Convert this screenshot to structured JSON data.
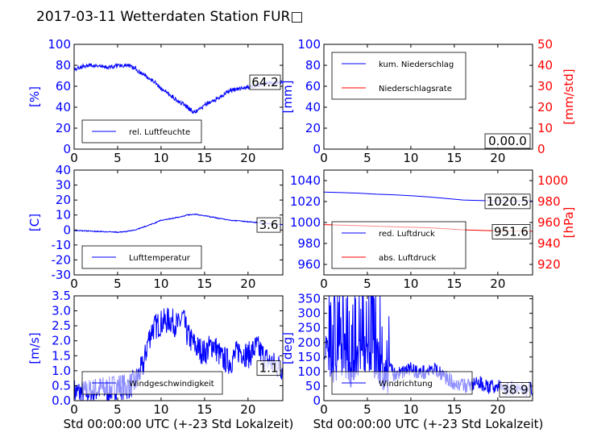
{
  "title": "2017-03-11 Wetterdaten Station FUR□",
  "xlabel": "Std 00:00:00 UTC (+-23 Std Lokalzeit)",
  "colors": {
    "primary": "#0000ff",
    "secondary": "#ff0000",
    "axis": "#000000"
  },
  "chart_data": [
    {
      "id": "humidity",
      "type": "line",
      "ylabel": "[%]",
      "ylim": [
        0,
        100
      ],
      "yticks": [
        0,
        20,
        40,
        60,
        80,
        100
      ],
      "xlim": [
        0,
        24
      ],
      "xticks": [
        0,
        5,
        10,
        15,
        20
      ],
      "show_xlabel": false,
      "legend_placement": "lower-left",
      "series": [
        {
          "name": "rel. Luftfeuchte",
          "color": "#0000ff",
          "noise": 2,
          "x": [
            0,
            1,
            2,
            3,
            4,
            5,
            6,
            7,
            8,
            9,
            10,
            11,
            12,
            13,
            13.8,
            14.5,
            15,
            16,
            17,
            18,
            19,
            20,
            21,
            22,
            23,
            24
          ],
          "y": [
            76,
            79,
            80,
            79,
            78,
            80,
            80,
            77,
            71,
            66,
            58,
            52,
            46,
            40,
            35,
            38,
            42,
            46,
            51,
            56,
            58,
            59,
            61,
            63,
            63,
            64
          ]
        }
      ],
      "annotation": {
        "text": "64.2",
        "value": 64.2
      }
    },
    {
      "id": "precip",
      "type": "line",
      "ylabel": "[mm]",
      "ylim": [
        0,
        100
      ],
      "yticks": [
        0,
        20,
        40,
        60,
        80,
        100
      ],
      "ylabel2": "[mm/std]",
      "ylim2": [
        0,
        50
      ],
      "yticks2": [
        0,
        10,
        20,
        30,
        40,
        50
      ],
      "xlim": [
        0,
        24
      ],
      "xticks": [
        0,
        5,
        10,
        15,
        20
      ],
      "show_xlabel": false,
      "legend_placement": "upper-left",
      "series": [
        {
          "name": "kum. Niederschlag",
          "color": "#0000ff",
          "axis": "left",
          "x": [
            0,
            24
          ],
          "y": [
            0,
            0
          ]
        },
        {
          "name": "Niederschlagsrate",
          "color": "#ff0000",
          "axis": "right",
          "x": [
            0,
            24
          ],
          "y": [
            0,
            0
          ]
        }
      ],
      "annotation": {
        "text": "0.00.0",
        "value": 0
      }
    },
    {
      "id": "temperature",
      "type": "line",
      "ylabel": "[C]",
      "ylim": [
        -30,
        40
      ],
      "yticks": [
        -30,
        -20,
        -10,
        0,
        10,
        20,
        30,
        40
      ],
      "xlim": [
        0,
        24
      ],
      "xticks": [
        0,
        5,
        10,
        15,
        20
      ],
      "show_xlabel": false,
      "legend_placement": "lower-left",
      "series": [
        {
          "name": "Lufttemperatur",
          "color": "#0000ff",
          "noise": 0.3,
          "x": [
            0,
            1,
            2,
            3,
            4,
            5,
            6,
            7,
            8,
            9,
            10,
            11,
            12,
            13,
            14,
            15,
            16,
            17,
            18,
            19,
            20,
            21,
            22,
            23,
            24
          ],
          "y": [
            -0.5,
            -0.5,
            -0.8,
            -1,
            -1.2,
            -1.5,
            -1,
            0,
            2,
            4,
            6.5,
            7.5,
            8.5,
            10,
            10.5,
            9.5,
            8.5,
            7.5,
            6.5,
            6,
            5.5,
            5,
            4.5,
            4,
            3.6
          ]
        }
      ],
      "annotation": {
        "text": "3.6",
        "value": 3.6
      }
    },
    {
      "id": "pressure",
      "type": "line",
      "ylim": [
        950,
        1050
      ],
      "yticks": [
        960,
        980,
        1000,
        1020,
        1040
      ],
      "ylabel2": "[hPa]",
      "ylim2": [
        910,
        1010
      ],
      "yticks2": [
        920,
        940,
        960,
        980,
        1000
      ],
      "xlim": [
        0,
        24
      ],
      "xticks": [
        0,
        5,
        10,
        15,
        20
      ],
      "show_xlabel": false,
      "legend_placement": "lower-left",
      "series": [
        {
          "name": "red. Luftdruck",
          "color": "#0000ff",
          "axis": "left",
          "x": [
            0,
            2,
            4,
            6,
            8,
            10,
            12,
            14,
            16,
            18,
            20,
            22,
            24
          ],
          "y": [
            1029,
            1028.5,
            1028,
            1027,
            1026.5,
            1025.5,
            1024.5,
            1023,
            1021.5,
            1021,
            1020.8,
            1020.6,
            1020.5
          ]
        },
        {
          "name": "abs. Luftdruck",
          "color": "#ff0000",
          "axis": "right",
          "x": [
            0,
            2,
            4,
            6,
            8,
            10,
            12,
            14,
            16,
            18,
            20,
            22,
            24
          ],
          "y": [
            958,
            957.5,
            957,
            956.5,
            956,
            955.5,
            955,
            954,
            953,
            952.5,
            952,
            951.8,
            951.6
          ]
        }
      ],
      "annotations": [
        {
          "text": "1020.5",
          "value": 1020.5,
          "axis": "left"
        },
        {
          "text": "951.6",
          "value": 951.6,
          "axis": "right"
        }
      ]
    },
    {
      "id": "windspeed",
      "type": "line",
      "ylabel": "[m/s]",
      "ylim": [
        0,
        3.5
      ],
      "yticks": [
        0,
        0.5,
        1.0,
        1.5,
        2.0,
        2.5,
        3.0,
        3.5
      ],
      "ytick_labels": [
        "0.0",
        "0.5",
        "1.0",
        "1.5",
        "2.0",
        "2.5",
        "3.0",
        "3.5"
      ],
      "xlim": [
        0,
        24
      ],
      "xticks": [
        0,
        5,
        10,
        15,
        20
      ],
      "show_xlabel": true,
      "legend_placement": "lower-left",
      "series": [
        {
          "name": "Windgeschwindigkeit",
          "color": "#0000ff",
          "noise": 0.45,
          "seed": 7,
          "x": [
            0,
            1,
            2,
            3,
            4,
            5,
            6,
            7,
            8,
            8.5,
            9,
            10,
            11,
            12,
            12.5,
            13,
            14,
            15,
            16,
            17,
            18,
            19,
            20,
            21,
            22,
            23,
            24
          ],
          "y": [
            0.3,
            0.25,
            0.3,
            0.4,
            0.35,
            0.5,
            0.45,
            0.6,
            1.2,
            2.0,
            2.4,
            2.6,
            2.7,
            2.5,
            2.8,
            2.2,
            1.8,
            1.6,
            1.9,
            1.4,
            1.3,
            1.7,
            1.5,
            1.8,
            1.4,
            1.2,
            1.1
          ]
        }
      ],
      "annotation": {
        "text": "1.1",
        "value": 1.1
      }
    },
    {
      "id": "winddir",
      "type": "line",
      "ylabel": "[deg]",
      "ylim": [
        0,
        360
      ],
      "yticks": [
        0,
        50,
        100,
        150,
        200,
        250,
        300,
        350
      ],
      "xlim": [
        0,
        24
      ],
      "xticks": [
        0,
        5,
        10,
        15,
        20
      ],
      "show_xlabel": true,
      "legend_placement": "lower-left",
      "series": [
        {
          "name": "Windrichtung",
          "color": "#0000ff",
          "noise": 25,
          "spiky": true,
          "seed": 13,
          "x": [
            0,
            1,
            2,
            3,
            4,
            5,
            6,
            7,
            8,
            9,
            10,
            11,
            12,
            13,
            14,
            15,
            16,
            17,
            18,
            19,
            20,
            21,
            22,
            23,
            24
          ],
          "y": [
            250,
            180,
            200,
            160,
            190,
            200,
            180,
            150,
            90,
            100,
            110,
            95,
            100,
            105,
            80,
            60,
            50,
            55,
            60,
            45,
            50,
            40,
            45,
            40,
            38.9
          ]
        }
      ],
      "annotation": {
        "text": "38.9",
        "value": 38.9
      }
    }
  ]
}
